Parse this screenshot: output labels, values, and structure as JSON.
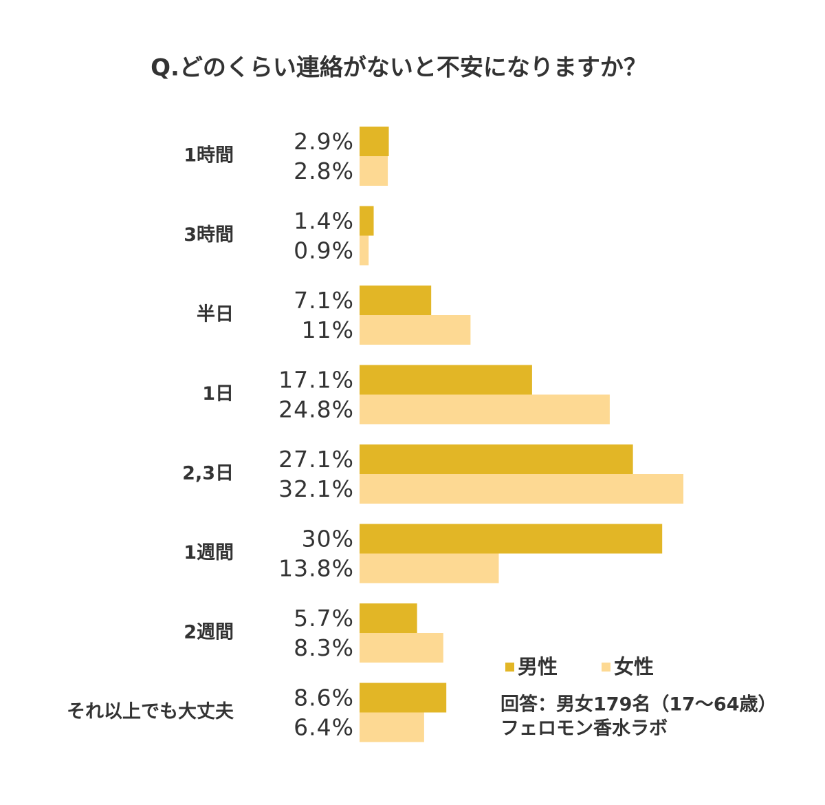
{
  "chart_data": {
    "type": "hbar",
    "title": "Q.どのくらい連絡がないと不安になりますか？",
    "categories": [
      "1時間",
      "3時間",
      "半日",
      "1日",
      "2,3日",
      "1週間",
      "2週間",
      "それ以上でも大丈夫"
    ],
    "series": [
      {
        "name": "男性",
        "color": "#e2b626",
        "values": [
          2.9,
          1.4,
          7.1,
          17.1,
          27.1,
          30,
          5.7,
          8.6
        ],
        "value_labels": [
          "2.9%",
          "1.4%",
          "7.1%",
          "17.1%",
          "27.1%",
          "30%",
          "5.7%",
          "8.6%"
        ]
      },
      {
        "name": "女性",
        "color": "#fdd993",
        "values": [
          2.8,
          0.9,
          11,
          24.8,
          32.1,
          13.8,
          8.3,
          6.4
        ],
        "value_labels": [
          "2.8%",
          "0.9%",
          "11%",
          "24.8%",
          "32.1%",
          "13.8%",
          "8.3%",
          "6.4%"
        ]
      }
    ],
    "annotations": [
      "回答：男女179名（17〜64歳）",
      "フェロモン香水ラボ"
    ]
  }
}
